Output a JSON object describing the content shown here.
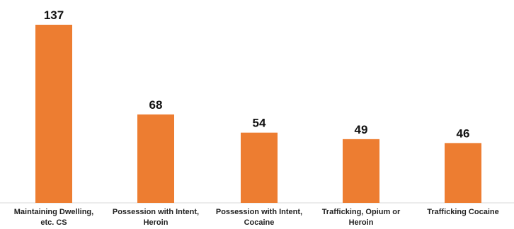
{
  "chart_data": {
    "type": "bar",
    "title": "",
    "xlabel": "",
    "ylabel": "",
    "ylim": [
      0,
      137
    ],
    "grid": false,
    "legend": "none",
    "bar_color": "#ED7D31",
    "categories": [
      [
        "Maintaining Dwelling,",
        "etc. CS"
      ],
      [
        "Possession with Intent,",
        "Heroin"
      ],
      [
        "Possession with Intent,",
        "Cocaine"
      ],
      [
        "Trafficking, Opium or",
        "Heroin"
      ],
      [
        "Trafficking Cocaine"
      ]
    ],
    "values": [
      137,
      68,
      54,
      49,
      46
    ]
  }
}
